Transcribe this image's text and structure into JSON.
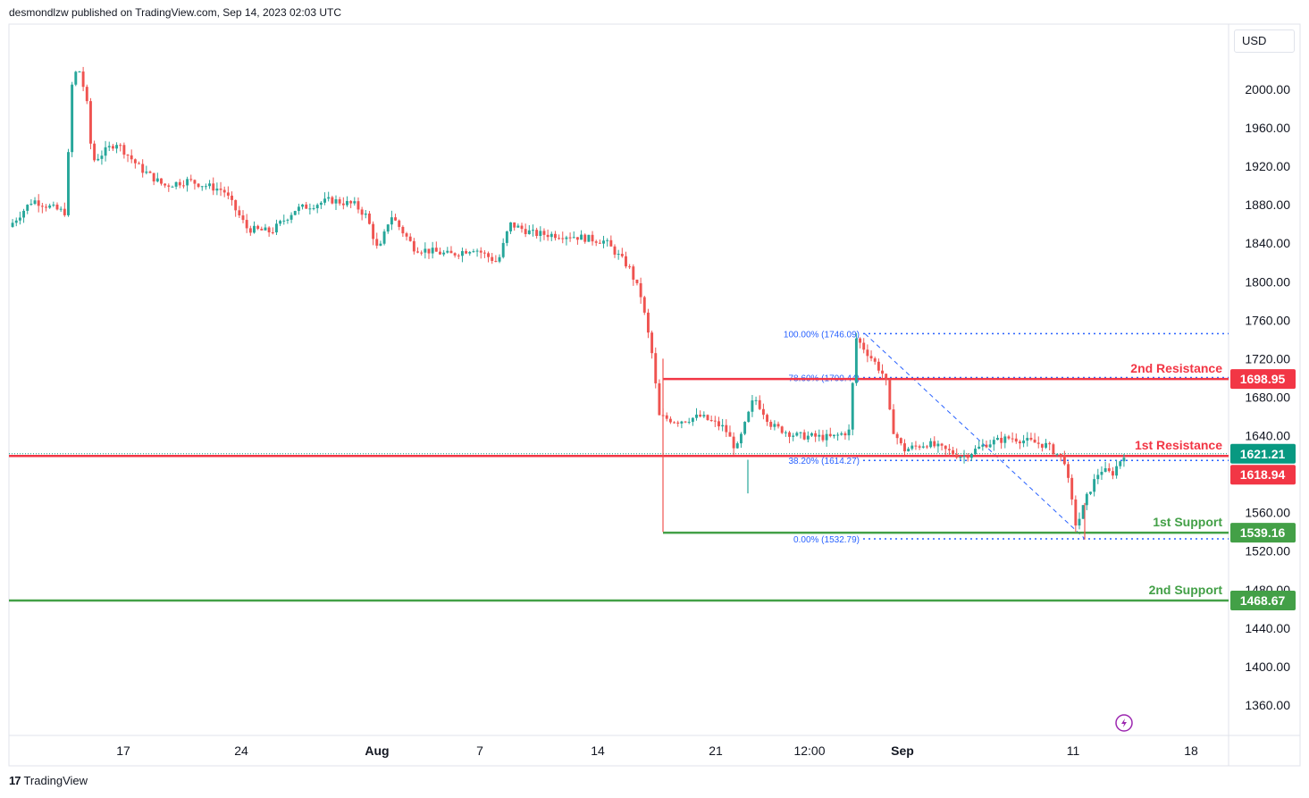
{
  "header": {
    "publisher": "desmondlzw published on TradingView.com, Sep 14, 2023 02:03 UTC"
  },
  "footer": {
    "brand": "TradingView",
    "logo_text": "17"
  },
  "currency_button": {
    "label": "USD"
  },
  "colors": {
    "up": "#26a69a",
    "down": "#ef5350",
    "resistance": "#f23645",
    "support": "#43a047",
    "fib": "#2962ff",
    "axis_text": "#131722",
    "current_price_bg": "#089981"
  },
  "chart_data": {
    "type": "candlestick",
    "symbol_currency": "USD",
    "ylim": [
      1320,
      2060
    ],
    "y_ticks": [
      "2000.00",
      "1960.00",
      "1920.00",
      "1880.00",
      "1840.00",
      "1800.00",
      "1760.00",
      "1720.00",
      "1680.00",
      "1640.00",
      "1600.00",
      "1560.00",
      "1520.00",
      "1480.00",
      "1440.00",
      "1400.00",
      "1360.00"
    ],
    "x_tick_labels": [
      "17",
      "24",
      "Aug",
      "7",
      "14",
      "21",
      "12:00",
      "Sep",
      "11",
      "18"
    ],
    "price_path": [
      {
        "t": 0.0,
        "p": 1857
      },
      {
        "t": 0.02,
        "p": 1885
      },
      {
        "t": 0.04,
        "p": 1875
      },
      {
        "t": 0.048,
        "p": 1872
      },
      {
        "t": 0.052,
        "p": 2000
      },
      {
        "t": 0.058,
        "p": 2025
      },
      {
        "t": 0.065,
        "p": 1990
      },
      {
        "t": 0.07,
        "p": 1925
      },
      {
        "t": 0.09,
        "p": 1945
      },
      {
        "t": 0.11,
        "p": 1918
      },
      {
        "t": 0.13,
        "p": 1900
      },
      {
        "t": 0.15,
        "p": 1905
      },
      {
        "t": 0.18,
        "p": 1895
      },
      {
        "t": 0.2,
        "p": 1855
      },
      {
        "t": 0.22,
        "p": 1852
      },
      {
        "t": 0.24,
        "p": 1875
      },
      {
        "t": 0.27,
        "p": 1885
      },
      {
        "t": 0.29,
        "p": 1880
      },
      {
        "t": 0.3,
        "p": 1868
      },
      {
        "t": 0.31,
        "p": 1830
      },
      {
        "t": 0.32,
        "p": 1870
      },
      {
        "t": 0.34,
        "p": 1835
      },
      {
        "t": 0.37,
        "p": 1828
      },
      {
        "t": 0.39,
        "p": 1835
      },
      {
        "t": 0.41,
        "p": 1820
      },
      {
        "t": 0.42,
        "p": 1860
      },
      {
        "t": 0.44,
        "p": 1850
      },
      {
        "t": 0.47,
        "p": 1848
      },
      {
        "t": 0.5,
        "p": 1842
      },
      {
        "t": 0.52,
        "p": 1815
      },
      {
        "t": 0.53,
        "p": 1785
      },
      {
        "t": 0.54,
        "p": 1720
      },
      {
        "t": 0.545,
        "p": 1660
      },
      {
        "t": 0.56,
        "p": 1655
      },
      {
        "t": 0.58,
        "p": 1660
      },
      {
        "t": 0.6,
        "p": 1648
      },
      {
        "t": 0.61,
        "p": 1625
      },
      {
        "t": 0.625,
        "p": 1680
      },
      {
        "t": 0.64,
        "p": 1650
      },
      {
        "t": 0.66,
        "p": 1640
      },
      {
        "t": 0.69,
        "p": 1638
      },
      {
        "t": 0.705,
        "p": 1645
      },
      {
        "t": 0.71,
        "p": 1742
      },
      {
        "t": 0.725,
        "p": 1718
      },
      {
        "t": 0.735,
        "p": 1700
      },
      {
        "t": 0.74,
        "p": 1650
      },
      {
        "t": 0.75,
        "p": 1625
      },
      {
        "t": 0.77,
        "p": 1632
      },
      {
        "t": 0.8,
        "p": 1618
      },
      {
        "t": 0.82,
        "p": 1632
      },
      {
        "t": 0.84,
        "p": 1638
      },
      {
        "t": 0.87,
        "p": 1630
      },
      {
        "t": 0.885,
        "p": 1615
      },
      {
        "t": 0.895,
        "p": 1545
      },
      {
        "t": 0.905,
        "p": 1580
      },
      {
        "t": 0.915,
        "p": 1605
      },
      {
        "t": 0.925,
        "p": 1600
      },
      {
        "t": 0.935,
        "p": 1621
      }
    ],
    "levels": [
      {
        "name": "2nd Resistance",
        "price": 1698.95,
        "label": "1698.95",
        "kind": "resistance"
      },
      {
        "name": "1st Resistance",
        "price": 1618.94,
        "label": "1618.94",
        "kind": "resistance"
      },
      {
        "name": "1st Support",
        "price": 1539.16,
        "label": "1539.16",
        "kind": "support"
      },
      {
        "name": "2nd Support",
        "price": 1468.67,
        "label": "1468.67",
        "kind": "support"
      }
    ],
    "current_price": {
      "price": 1621.21,
      "label": "1621.21"
    },
    "fibonacci": [
      {
        "label": "100.00% (1746.09)",
        "price": 1746.09
      },
      {
        "label": "78.60% (1700.44)",
        "price": 1700.44
      },
      {
        "label": "38.20% (1614.27)",
        "price": 1614.27
      },
      {
        "label": "0.00% (1532.79)",
        "price": 1532.79
      }
    ]
  }
}
